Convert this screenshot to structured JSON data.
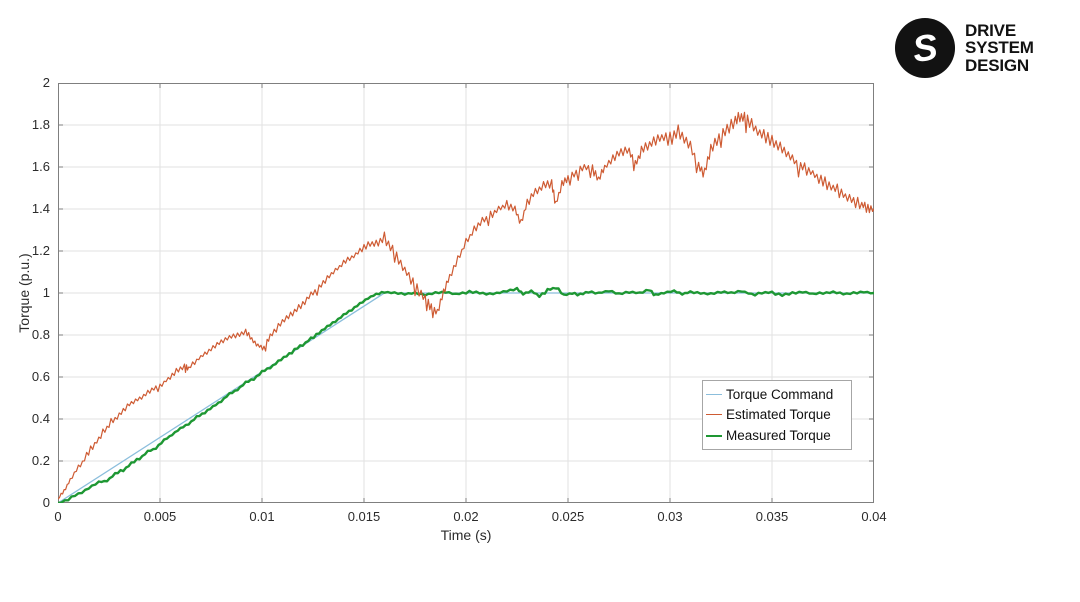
{
  "logo": {
    "lines": [
      "DRIVE",
      "SYSTEM",
      "DESIGN"
    ],
    "icon": "dsd-s-monogram",
    "color": "#121212"
  },
  "chart_data": {
    "type": "line",
    "title": "",
    "xlabel": "Time (s)",
    "ylabel": "Torque (p.u.)",
    "xlim": [
      0,
      0.04
    ],
    "ylim": [
      0,
      2
    ],
    "grid": true,
    "x_ticks": {
      "values": [
        0,
        0.005,
        0.01,
        0.015,
        0.02,
        0.025,
        0.03,
        0.035,
        0.04
      ],
      "labels": [
        "0",
        "0.005",
        "0.01",
        "0.015",
        "0.02",
        "0.025",
        "0.03",
        "0.035",
        "0.04"
      ]
    },
    "y_ticks": {
      "values": [
        0,
        0.2,
        0.4,
        0.6,
        0.8,
        1,
        1.2,
        1.4,
        1.6,
        1.8,
        2
      ],
      "labels": [
        "0",
        "0.2",
        "0.4",
        "0.6",
        "0.8",
        "1",
        "1.2",
        "1.4",
        "1.6",
        "1.8",
        "2"
      ]
    },
    "legend": {
      "position": "inside-right",
      "entries": [
        {
          "label": "Torque Command"
        },
        {
          "label": "Estimated Torque"
        },
        {
          "label": "Measured Torque"
        }
      ]
    },
    "plot_order": [
      0,
      2,
      1
    ],
    "series": [
      {
        "name": "Torque Command",
        "color": "#8bbedc",
        "width": 1.3,
        "subdiv": 1,
        "points": [
          [
            0,
            0
          ],
          [
            0.016,
            1
          ],
          [
            0.04,
            1
          ]
        ]
      },
      {
        "name": "Estimated Torque",
        "color": "#ce5b33",
        "width": 1.2,
        "subdiv": 4,
        "noise_profile": [
          [
            0,
            0.01
          ],
          [
            0.008,
            0.013
          ],
          [
            0.015,
            0.016
          ],
          [
            0.017,
            0.024
          ],
          [
            0.019,
            0.02
          ],
          [
            0.023,
            0.02
          ],
          [
            0.027,
            0.021
          ],
          [
            0.031,
            0.025
          ],
          [
            0.034,
            0.03
          ],
          [
            0.04,
            0.027
          ]
        ],
        "points": [
          [
            0,
            0.02
          ],
          [
            0.0003,
            0.06
          ],
          [
            0.0006,
            0.11
          ],
          [
            0.001,
            0.17
          ],
          [
            0.0014,
            0.22
          ],
          [
            0.0018,
            0.28
          ],
          [
            0.0022,
            0.33
          ],
          [
            0.0026,
            0.38
          ],
          [
            0.003,
            0.42
          ],
          [
            0.0034,
            0.46
          ],
          [
            0.0038,
            0.49
          ],
          [
            0.0042,
            0.51
          ],
          [
            0.0046,
            0.54
          ],
          [
            0.005,
            0.56
          ],
          [
            0.0054,
            0.59
          ],
          [
            0.0058,
            0.63
          ],
          [
            0.0062,
            0.65
          ],
          [
            0.0064,
            0.64
          ],
          [
            0.0068,
            0.68
          ],
          [
            0.0072,
            0.71
          ],
          [
            0.0076,
            0.74
          ],
          [
            0.008,
            0.77
          ],
          [
            0.0084,
            0.79
          ],
          [
            0.0088,
            0.8
          ],
          [
            0.0092,
            0.82
          ],
          [
            0.0095,
            0.78
          ],
          [
            0.0098,
            0.75
          ],
          [
            0.0101,
            0.74
          ],
          [
            0.0104,
            0.79
          ],
          [
            0.0108,
            0.84
          ],
          [
            0.0112,
            0.88
          ],
          [
            0.0116,
            0.91
          ],
          [
            0.012,
            0.95
          ],
          [
            0.0124,
            0.99
          ],
          [
            0.0128,
            1.03
          ],
          [
            0.0132,
            1.07
          ],
          [
            0.0136,
            1.11
          ],
          [
            0.014,
            1.14
          ],
          [
            0.0144,
            1.17
          ],
          [
            0.0148,
            1.2
          ],
          [
            0.0152,
            1.23
          ],
          [
            0.0156,
            1.24
          ],
          [
            0.016,
            1.25
          ],
          [
            0.0164,
            1.21
          ],
          [
            0.0168,
            1.14
          ],
          [
            0.0172,
            1.08
          ],
          [
            0.0176,
            1.02
          ],
          [
            0.018,
            0.97
          ],
          [
            0.0183,
            0.93
          ],
          [
            0.0186,
            0.91
          ],
          [
            0.0189,
            1.0
          ],
          [
            0.0192,
            1.08
          ],
          [
            0.0196,
            1.16
          ],
          [
            0.02,
            1.24
          ],
          [
            0.0204,
            1.3
          ],
          [
            0.0208,
            1.34
          ],
          [
            0.0212,
            1.37
          ],
          [
            0.0216,
            1.4
          ],
          [
            0.022,
            1.42
          ],
          [
            0.0224,
            1.4
          ],
          [
            0.0227,
            1.33
          ],
          [
            0.023,
            1.43
          ],
          [
            0.0234,
            1.48
          ],
          [
            0.0238,
            1.51
          ],
          [
            0.0242,
            1.52
          ],
          [
            0.0244,
            1.42
          ],
          [
            0.0247,
            1.52
          ],
          [
            0.025,
            1.55
          ],
          [
            0.0254,
            1.57
          ],
          [
            0.0258,
            1.6
          ],
          [
            0.0262,
            1.59
          ],
          [
            0.0265,
            1.54
          ],
          [
            0.0268,
            1.6
          ],
          [
            0.0272,
            1.64
          ],
          [
            0.0276,
            1.67
          ],
          [
            0.028,
            1.68
          ],
          [
            0.0283,
            1.61
          ],
          [
            0.0286,
            1.68
          ],
          [
            0.029,
            1.71
          ],
          [
            0.0294,
            1.73
          ],
          [
            0.0298,
            1.75
          ],
          [
            0.0302,
            1.76
          ],
          [
            0.0306,
            1.74
          ],
          [
            0.031,
            1.7
          ],
          [
            0.0314,
            1.6
          ],
          [
            0.0317,
            1.57
          ],
          [
            0.032,
            1.68
          ],
          [
            0.0324,
            1.74
          ],
          [
            0.0328,
            1.78
          ],
          [
            0.0332,
            1.82
          ],
          [
            0.0335,
            1.84
          ],
          [
            0.0338,
            1.82
          ],
          [
            0.0342,
            1.78
          ],
          [
            0.0346,
            1.75
          ],
          [
            0.035,
            1.72
          ],
          [
            0.0354,
            1.69
          ],
          [
            0.0358,
            1.66
          ],
          [
            0.0362,
            1.62
          ],
          [
            0.0366,
            1.59
          ],
          [
            0.037,
            1.57
          ],
          [
            0.0374,
            1.54
          ],
          [
            0.0378,
            1.51
          ],
          [
            0.0382,
            1.49
          ],
          [
            0.0386,
            1.46
          ],
          [
            0.039,
            1.44
          ],
          [
            0.0394,
            1.42
          ],
          [
            0.0397,
            1.41
          ],
          [
            0.04,
            1.4
          ]
        ]
      },
      {
        "name": "Measured Torque",
        "color": "#1e9733",
        "width": 2.4,
        "subdiv": 3,
        "noise_profile": [
          [
            0,
            0.003
          ],
          [
            0.016,
            0.004
          ],
          [
            0.04,
            0.004
          ]
        ],
        "points": [
          [
            0,
            0
          ],
          [
            0.0005,
            0.015
          ],
          [
            0.001,
            0.045
          ],
          [
            0.0015,
            0.07
          ],
          [
            0.002,
            0.1
          ],
          [
            0.0024,
            0.105
          ],
          [
            0.0028,
            0.14
          ],
          [
            0.0032,
            0.155
          ],
          [
            0.0036,
            0.19
          ],
          [
            0.004,
            0.21
          ],
          [
            0.0044,
            0.245
          ],
          [
            0.0048,
            0.26
          ],
          [
            0.0052,
            0.3
          ],
          [
            0.0056,
            0.325
          ],
          [
            0.006,
            0.355
          ],
          [
            0.0064,
            0.375
          ],
          [
            0.0068,
            0.41
          ],
          [
            0.0072,
            0.43
          ],
          [
            0.0076,
            0.46
          ],
          [
            0.008,
            0.485
          ],
          [
            0.0084,
            0.52
          ],
          [
            0.0088,
            0.54
          ],
          [
            0.0092,
            0.575
          ],
          [
            0.0096,
            0.59
          ],
          [
            0.01,
            0.625
          ],
          [
            0.0104,
            0.645
          ],
          [
            0.0108,
            0.675
          ],
          [
            0.0112,
            0.7
          ],
          [
            0.0116,
            0.73
          ],
          [
            0.012,
            0.75
          ],
          [
            0.0124,
            0.785
          ],
          [
            0.0128,
            0.81
          ],
          [
            0.0132,
            0.84
          ],
          [
            0.0136,
            0.865
          ],
          [
            0.014,
            0.895
          ],
          [
            0.0144,
            0.92
          ],
          [
            0.0148,
            0.95
          ],
          [
            0.0152,
            0.975
          ],
          [
            0.0156,
            0.995
          ],
          [
            0.016,
            1.005
          ],
          [
            0.0165,
            1.0
          ],
          [
            0.017,
            0.995
          ],
          [
            0.0175,
            1.0
          ],
          [
            0.018,
            0.99
          ],
          [
            0.0185,
            1.0
          ],
          [
            0.019,
            1.005
          ],
          [
            0.0195,
            0.995
          ],
          [
            0.02,
            1.0
          ],
          [
            0.0205,
            1.005
          ],
          [
            0.021,
            0.995
          ],
          [
            0.0215,
            1.0
          ],
          [
            0.022,
            1.01
          ],
          [
            0.0225,
            1.02
          ],
          [
            0.0228,
            0.995
          ],
          [
            0.0232,
            1.01
          ],
          [
            0.0236,
            0.985
          ],
          [
            0.024,
            1.015
          ],
          [
            0.0244,
            1.025
          ],
          [
            0.0248,
            0.99
          ],
          [
            0.0252,
            1.0
          ],
          [
            0.0256,
            0.995
          ],
          [
            0.026,
            1.005
          ],
          [
            0.0265,
            1.0
          ],
          [
            0.027,
            1.01
          ],
          [
            0.0275,
            0.995
          ],
          [
            0.028,
            1.005
          ],
          [
            0.0285,
            1.0
          ],
          [
            0.029,
            1.015
          ],
          [
            0.0293,
            0.99
          ],
          [
            0.0297,
            1.0
          ],
          [
            0.0302,
            1.01
          ],
          [
            0.0306,
            0.995
          ],
          [
            0.031,
            1.005
          ],
          [
            0.0315,
            1.0
          ],
          [
            0.032,
            0.995
          ],
          [
            0.0325,
            1.005
          ],
          [
            0.033,
            1.0
          ],
          [
            0.0335,
            1.01
          ],
          [
            0.034,
            0.995
          ],
          [
            0.0345,
            1.0
          ],
          [
            0.035,
            1.005
          ],
          [
            0.0355,
            0.99
          ],
          [
            0.036,
            1.0
          ],
          [
            0.0365,
            1.005
          ],
          [
            0.037,
            0.995
          ],
          [
            0.0375,
            1.0
          ],
          [
            0.038,
            1.005
          ],
          [
            0.0385,
            0.995
          ],
          [
            0.039,
            1.0
          ],
          [
            0.0395,
            1.005
          ],
          [
            0.04,
            1.0
          ]
        ]
      }
    ],
    "axis_color": "#7f7f7f",
    "grid_color": "#e2e2e2",
    "tick_label_color": "#2b2b2b"
  }
}
